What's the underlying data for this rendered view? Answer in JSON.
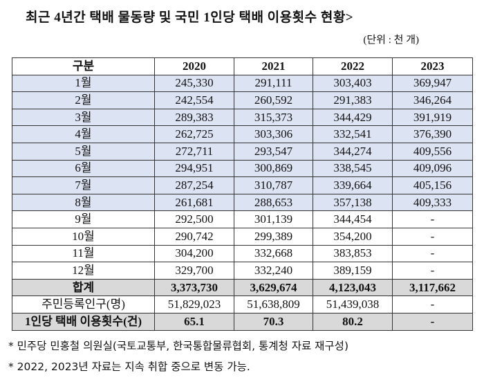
{
  "title": "최근 4년간 택배 물동량 및 국민 1인당 택배 이용횟수 현황>",
  "unit": "(단위 : 천 개)",
  "table": {
    "headers": [
      "구분",
      "2020",
      "2021",
      "2022",
      "2023"
    ],
    "rows": [
      [
        "1월",
        "245,330",
        "291,111",
        "303,403",
        "369,947"
      ],
      [
        "2월",
        "242,554",
        "260,592",
        "291,383",
        "346,264"
      ],
      [
        "3월",
        "289,383",
        "315,373",
        "344,429",
        "391,919"
      ],
      [
        "4월",
        "262,725",
        "303,306",
        "332,541",
        "376,390"
      ],
      [
        "5월",
        "272,711",
        "293,547",
        "344,274",
        "409,556"
      ],
      [
        "6월",
        "294,951",
        "300,869",
        "338,545",
        "409,096"
      ],
      [
        "7월",
        "287,254",
        "310,787",
        "339,664",
        "405,156"
      ],
      [
        "8월",
        "261,681",
        "288,653",
        "357,138",
        "409,333"
      ],
      [
        "9월",
        "292,500",
        "301,139",
        "344,454",
        "-"
      ],
      [
        "10월",
        "290,742",
        "299,389",
        "354,200",
        "-"
      ],
      [
        "11월",
        "304,200",
        "332,668",
        "383,853",
        "-"
      ],
      [
        "12월",
        "329,700",
        "332,240",
        "389,159",
        "-"
      ]
    ],
    "total": [
      "합계",
      "3,373,730",
      "3,629,674",
      "4,123,043",
      "3,117,662"
    ],
    "population": [
      "주민등록인구(명)",
      "51,829,023",
      "51,638,809",
      "51,439,038",
      "-"
    ],
    "per_capita": [
      "1인당 택배 이용횟수(건)",
      "65.1",
      "70.3",
      "80.2",
      "-"
    ]
  },
  "notes": [
    "* 민주당 민홍철 의원실(국토교통부, 한국통합물류협회, 통계청 자료 재구성)",
    "* 2022, 2023년 자료는 지속 취합 중으로 변동 가능."
  ],
  "colors": {
    "highlight_blue": "#dce3f3",
    "total_gray": "#d9d9d9"
  }
}
